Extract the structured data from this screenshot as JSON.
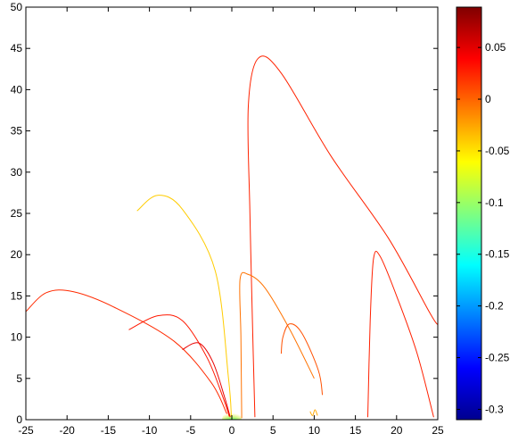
{
  "chart_data": {
    "type": "contour",
    "title": "",
    "xlabel": "",
    "ylabel": "",
    "xlim": [
      -25,
      25
    ],
    "ylim": [
      0,
      50
    ],
    "x_ticks": [
      -25,
      -20,
      -15,
      -10,
      -5,
      0,
      5,
      10,
      15,
      20,
      25
    ],
    "x_tick_labels": [
      "-25",
      "-20",
      "-15",
      "-10",
      "-5",
      "0",
      "5",
      "10",
      "15",
      "20",
      "25"
    ],
    "y_ticks": [
      0,
      5,
      10,
      15,
      20,
      25,
      30,
      35,
      40,
      45,
      50
    ],
    "y_tick_labels": [
      "0",
      "5",
      "10",
      "15",
      "20",
      "25",
      "30",
      "35",
      "40",
      "45",
      "50"
    ],
    "grid": false,
    "colormap": "jet",
    "colorbar": {
      "clim": [
        -0.31,
        0.089
      ],
      "ticks": [
        0.05,
        0,
        -0.05,
        -0.1,
        -0.15,
        -0.2,
        -0.25,
        -0.3
      ],
      "tick_labels": [
        "0.05",
        "0",
        "-0.05",
        "-0.1",
        "-0.15",
        "-0.2",
        "-0.25",
        "-0.3"
      ]
    },
    "source_point": [
      0,
      0
    ],
    "contour_levels": [
      {
        "value": 0.02,
        "color": "#ff2a00",
        "points": [
          [
            -25,
            13.1
          ],
          [
            -22.5,
            15.4
          ],
          [
            -19.2,
            15.5
          ],
          [
            -14,
            13.5
          ],
          [
            -7,
            9.5
          ],
          [
            -2.5,
            4.5
          ],
          [
            -0.6,
            0.7
          ]
        ]
      },
      {
        "value": 0.04,
        "color": "#ff1800",
        "points": [
          [
            -12.5,
            10.9
          ],
          [
            -9,
            12.6
          ],
          [
            -6,
            12
          ],
          [
            -3,
            7.5
          ],
          [
            -1,
            2.5
          ],
          [
            -0.3,
            0.4
          ]
        ]
      },
      {
        "value": 0.06,
        "color": "#e80000",
        "points": [
          [
            -6,
            8.5
          ],
          [
            -4,
            9.3
          ],
          [
            -2.3,
            7
          ],
          [
            -0.9,
            2.8
          ],
          [
            -0.2,
            0.3
          ]
        ]
      },
      {
        "value": -0.01,
        "color": "#ffcc00",
        "points": [
          [
            -11.5,
            25.3
          ],
          [
            -9,
            27.2
          ],
          [
            -6,
            25.5
          ],
          [
            -2,
            18
          ],
          [
            -0.4,
            5
          ],
          [
            -0.05,
            0.4
          ]
        ]
      },
      {
        "value": 0.03,
        "color": "#ff2200",
        "points": [
          [
            2.8,
            0.3
          ],
          [
            2.5,
            12
          ],
          [
            2.2,
            25
          ],
          [
            2,
            38
          ],
          [
            3.2,
            43.8
          ],
          [
            6,
            42
          ],
          [
            12,
            32
          ],
          [
            19,
            22
          ],
          [
            24,
            13
          ],
          [
            25,
            11.5
          ]
        ]
      },
      {
        "value": 0.01,
        "color": "#ff7200",
        "points": [
          [
            1.2,
            0.2
          ],
          [
            1.1,
            10
          ],
          [
            1.0,
            17
          ],
          [
            2,
            17.6
          ],
          [
            4,
            16
          ],
          [
            7,
            11
          ],
          [
            10,
            5
          ]
        ]
      },
      {
        "value": 0.015,
        "color": "#ff5000",
        "points": [
          [
            6,
            8
          ],
          [
            6.2,
            10
          ],
          [
            7,
            11.6
          ],
          [
            8.5,
            10.5
          ],
          [
            10.5,
            6
          ],
          [
            11,
            3
          ]
        ]
      },
      {
        "value": -0.005,
        "color": "#ffa800",
        "points": [
          [
            9.5,
            1
          ],
          [
            9.8,
            0.5
          ],
          [
            10.1,
            1.2
          ],
          [
            10.4,
            0.5
          ]
        ]
      },
      {
        "value": 0.035,
        "color": "#ff2000",
        "points": [
          [
            16.5,
            0.3
          ],
          [
            16.8,
            12
          ],
          [
            17.2,
            19.5
          ],
          [
            18,
            19.8
          ],
          [
            20,
            15
          ],
          [
            22.5,
            8
          ],
          [
            24.5,
            0.3
          ]
        ]
      }
    ]
  }
}
